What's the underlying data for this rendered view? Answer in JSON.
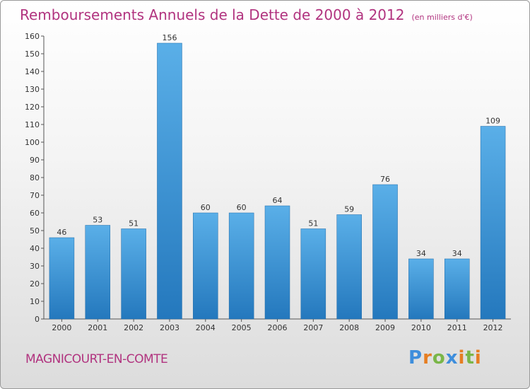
{
  "title": "Remboursements Annuels de la Dette de 2000 à 2012",
  "unit": "(en milliers d'€)",
  "town": "MAGNICOURT-EN-COMTE",
  "brand": {
    "letters": [
      "P",
      "r",
      "o",
      "x",
      "i",
      "t",
      "i"
    ],
    "colors": [
      "#3e8edc",
      "#e67e22",
      "#7ab648",
      "#3e8edc",
      "#e67e22",
      "#7ab648",
      "#e67e22"
    ]
  },
  "colors": {
    "title": "#b1337f",
    "bar_top": "#5aafe8",
    "bar_bottom": "#2478bd"
  },
  "chart_data": {
    "type": "bar",
    "categories": [
      "2000",
      "2001",
      "2002",
      "2003",
      "2004",
      "2005",
      "2006",
      "2007",
      "2008",
      "2009",
      "2010",
      "2011",
      "2012"
    ],
    "values": [
      46,
      53,
      51,
      156,
      60,
      60,
      64,
      51,
      59,
      76,
      34,
      34,
      109
    ],
    "ylim": [
      0,
      160
    ],
    "yticks": [
      0,
      10,
      20,
      30,
      40,
      50,
      60,
      70,
      80,
      90,
      100,
      110,
      120,
      130,
      140,
      150,
      160
    ],
    "grid": false,
    "data_labels": true
  }
}
